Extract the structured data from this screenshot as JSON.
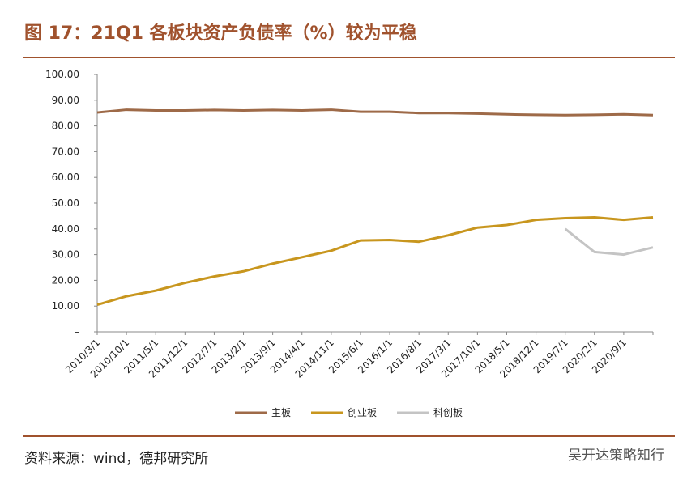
{
  "chart_data": {
    "type": "line",
    "title": "图 17：21Q1 各板块资产负债率（%）较为平稳",
    "source": "资料来源：wind，德邦研究所",
    "watermark": "吴开达策略知行",
    "categories": [
      "2010/3/1",
      "2010/10/1",
      "2011/5/1",
      "2011/12/1",
      "2012/7/1",
      "2013/2/1",
      "2013/9/1",
      "2014/4/1",
      "2014/11/1",
      "2015/6/1",
      "2016/1/1",
      "2016/8/1",
      "2017/3/1",
      "2017/10/1",
      "2018/5/1",
      "2018/12/1",
      "2019/7/1",
      "2020/2/1",
      "2020/9/1",
      null
    ],
    "series": [
      {
        "name": "主板",
        "color": "#9e6a48",
        "values": [
          85.2,
          86.3,
          86,
          86,
          86.2,
          86,
          86.2,
          86,
          86.3,
          85.5,
          85.5,
          85,
          85,
          84.8,
          84.5,
          84.3,
          84.2,
          84.3,
          84.5,
          84.2
        ]
      },
      {
        "name": "创业板",
        "color": "#c8961e",
        "values": [
          10.5,
          13.8,
          16,
          19,
          21.5,
          23.5,
          26.5,
          29,
          31.5,
          35.5,
          35.7,
          35,
          37.5,
          40.5,
          41.5,
          43.5,
          44.2,
          44.5,
          43.5,
          44.5
        ]
      },
      {
        "name": "科创板",
        "color": "#c4c4c4",
        "values": [
          null,
          null,
          null,
          null,
          null,
          null,
          null,
          null,
          null,
          null,
          null,
          null,
          null,
          null,
          null,
          null,
          40,
          31,
          30,
          32.8
        ]
      }
    ],
    "ylim": [
      0,
      100
    ],
    "yticks": [
      {
        "value": 0,
        "label": "–"
      },
      {
        "value": 10,
        "label": "10.00"
      },
      {
        "value": 20,
        "label": "20.00"
      },
      {
        "value": 30,
        "label": "30.00"
      },
      {
        "value": 40,
        "label": "40.00"
      },
      {
        "value": 50,
        "label": "50.00"
      },
      {
        "value": 60,
        "label": "60.00"
      },
      {
        "value": 70,
        "label": "70.00"
      },
      {
        "value": 80,
        "label": "80.00"
      },
      {
        "value": 90,
        "label": "90.00"
      },
      {
        "value": 100,
        "label": "100.00"
      }
    ],
    "legend": "bottom"
  }
}
